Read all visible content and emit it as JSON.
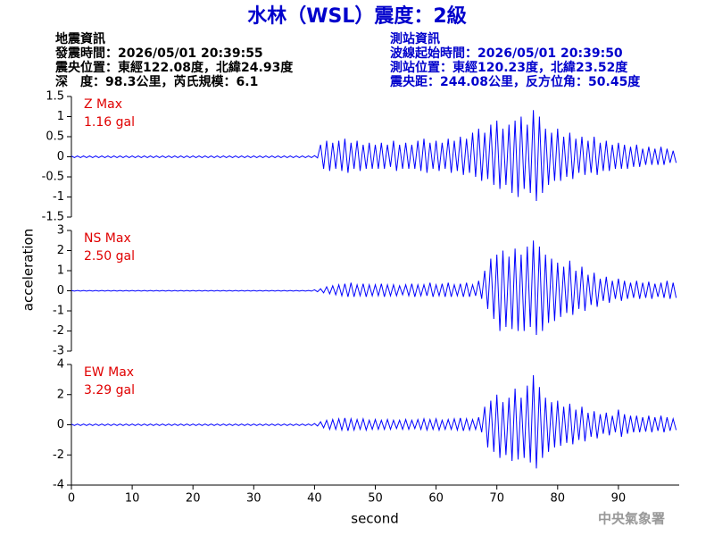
{
  "header": {
    "title": "水林（WSL）震度：2級",
    "left": [
      "地震資訊",
      "發震時間：2026/05/01 20:39:55",
      "震央位置：東經122.08度，北緯24.93度",
      "深　度：98.3公里，芮氏規模：6.1"
    ],
    "right": [
      "測站資訊",
      "波線起始時間：2026/05/01 20:39:50",
      "測站位置：東經120.23度，北緯23.52度",
      "震央距：244.08公里，反方位角：50.45度"
    ],
    "footer": "中央氣象署"
  },
  "chart_data": {
    "type": "line",
    "xlabel": "second",
    "ylabel": "acceleration",
    "xlim": [
      0,
      100
    ],
    "xticks": [
      0,
      10,
      20,
      30,
      40,
      50,
      60,
      70,
      80,
      90
    ],
    "x": [
      0,
      1,
      2,
      3,
      4,
      5,
      6,
      7,
      8,
      9,
      10,
      11,
      12,
      13,
      14,
      15,
      16,
      17,
      18,
      19,
      20,
      21,
      22,
      23,
      24,
      25,
      26,
      27,
      28,
      29,
      30,
      31,
      32,
      33,
      34,
      35,
      36,
      37,
      38,
      39,
      40,
      41,
      42,
      43,
      44,
      45,
      46,
      47,
      48,
      49,
      50,
      51,
      52,
      53,
      54,
      55,
      56,
      57,
      58,
      59,
      60,
      61,
      62,
      63,
      64,
      65,
      66,
      67,
      68,
      69,
      70,
      71,
      72,
      73,
      74,
      75,
      76,
      77,
      78,
      79,
      80,
      81,
      82,
      83,
      84,
      85,
      86,
      87,
      88,
      89,
      90,
      91,
      92,
      93,
      94,
      95,
      96,
      97,
      98,
      99
    ],
    "panels": [
      {
        "name": "Z Max",
        "annotation": "1.16 gal",
        "color": "#0000ff",
        "ylim": [
          -1.5,
          1.5
        ],
        "yticks": [
          1.5,
          1,
          0.5,
          0,
          -0.5,
          -1,
          -1.5
        ],
        "upper": [
          0.02,
          0.02,
          0.02,
          0.02,
          0.02,
          0.02,
          0.02,
          0.02,
          0.02,
          0.02,
          0.02,
          0.02,
          0.02,
          0.02,
          0.02,
          0.02,
          0.02,
          0.02,
          0.02,
          0.02,
          0.02,
          0.02,
          0.02,
          0.02,
          0.02,
          0.02,
          0.02,
          0.02,
          0.02,
          0.02,
          0.02,
          0.02,
          0.02,
          0.02,
          0.02,
          0.02,
          0.02,
          0.02,
          0.02,
          0.02,
          0.03,
          0.3,
          0.4,
          0.35,
          0.4,
          0.45,
          0.35,
          0.4,
          0.3,
          0.35,
          0.3,
          0.35,
          0.3,
          0.4,
          0.3,
          0.35,
          0.3,
          0.4,
          0.45,
          0.35,
          0.4,
          0.35,
          0.45,
          0.4,
          0.5,
          0.45,
          0.6,
          0.7,
          0.6,
          0.8,
          0.9,
          0.7,
          0.8,
          0.9,
          1.0,
          0.8,
          1.16,
          1.0,
          0.7,
          0.6,
          0.7,
          0.5,
          0.6,
          0.45,
          0.5,
          0.4,
          0.5,
          0.35,
          0.4,
          0.3,
          0.35,
          0.3,
          0.25,
          0.3,
          0.2,
          0.25,
          0.2,
          0.25,
          0.2,
          0.15
        ],
        "lower": [
          -0.02,
          -0.02,
          -0.02,
          -0.02,
          -0.02,
          -0.02,
          -0.02,
          -0.02,
          -0.02,
          -0.02,
          -0.02,
          -0.02,
          -0.02,
          -0.02,
          -0.02,
          -0.02,
          -0.02,
          -0.02,
          -0.02,
          -0.02,
          -0.02,
          -0.02,
          -0.02,
          -0.02,
          -0.02,
          -0.02,
          -0.02,
          -0.02,
          -0.02,
          -0.02,
          -0.02,
          -0.02,
          -0.02,
          -0.02,
          -0.02,
          -0.02,
          -0.02,
          -0.02,
          -0.02,
          -0.02,
          -0.03,
          -0.3,
          -0.35,
          -0.3,
          -0.35,
          -0.4,
          -0.3,
          -0.35,
          -0.3,
          -0.3,
          -0.3,
          -0.3,
          -0.25,
          -0.35,
          -0.3,
          -0.3,
          -0.3,
          -0.35,
          -0.4,
          -0.3,
          -0.35,
          -0.3,
          -0.4,
          -0.35,
          -0.45,
          -0.4,
          -0.5,
          -0.6,
          -0.55,
          -0.7,
          -0.8,
          -0.7,
          -0.9,
          -1.0,
          -0.8,
          -0.9,
          -1.1,
          -0.9,
          -0.7,
          -0.6,
          -0.6,
          -0.5,
          -0.55,
          -0.4,
          -0.45,
          -0.4,
          -0.45,
          -0.35,
          -0.35,
          -0.3,
          -0.3,
          -0.3,
          -0.25,
          -0.25,
          -0.2,
          -0.2,
          -0.2,
          -0.2,
          -0.15,
          -0.15
        ]
      },
      {
        "name": "NS Max",
        "annotation": "2.50 gal",
        "color": "#0000ff",
        "ylim": [
          -3,
          3
        ],
        "yticks": [
          3,
          2,
          1,
          0,
          -1,
          -2,
          -3
        ],
        "upper": [
          0.02,
          0.02,
          0.02,
          0.02,
          0.02,
          0.02,
          0.02,
          0.02,
          0.02,
          0.02,
          0.02,
          0.02,
          0.02,
          0.02,
          0.02,
          0.02,
          0.02,
          0.02,
          0.02,
          0.02,
          0.02,
          0.02,
          0.02,
          0.02,
          0.02,
          0.02,
          0.02,
          0.02,
          0.02,
          0.02,
          0.02,
          0.02,
          0.02,
          0.02,
          0.02,
          0.02,
          0.02,
          0.02,
          0.02,
          0.02,
          0.05,
          0.1,
          0.2,
          0.25,
          0.3,
          0.35,
          0.4,
          0.3,
          0.35,
          0.3,
          0.3,
          0.35,
          0.3,
          0.3,
          0.25,
          0.3,
          0.35,
          0.3,
          0.3,
          0.4,
          0.3,
          0.35,
          0.4,
          0.3,
          0.35,
          0.4,
          0.3,
          0.5,
          1.0,
          1.6,
          1.8,
          2.0,
          1.7,
          2.1,
          1.8,
          2.2,
          2.5,
          2.2,
          1.8,
          1.6,
          1.4,
          1.2,
          1.5,
          1.0,
          1.2,
          0.8,
          0.9,
          0.6,
          0.7,
          0.5,
          0.6,
          0.5,
          0.4,
          0.5,
          0.4,
          0.45,
          0.35,
          0.4,
          0.5,
          0.4
        ],
        "lower": [
          -0.02,
          -0.02,
          -0.02,
          -0.02,
          -0.02,
          -0.02,
          -0.02,
          -0.02,
          -0.02,
          -0.02,
          -0.02,
          -0.02,
          -0.02,
          -0.02,
          -0.02,
          -0.02,
          -0.02,
          -0.02,
          -0.02,
          -0.02,
          -0.02,
          -0.02,
          -0.02,
          -0.02,
          -0.02,
          -0.02,
          -0.02,
          -0.02,
          -0.02,
          -0.02,
          -0.02,
          -0.02,
          -0.02,
          -0.02,
          -0.02,
          -0.02,
          -0.02,
          -0.02,
          -0.02,
          -0.02,
          -0.05,
          -0.1,
          -0.15,
          -0.2,
          -0.25,
          -0.3,
          -0.3,
          -0.25,
          -0.3,
          -0.25,
          -0.25,
          -0.3,
          -0.25,
          -0.25,
          -0.2,
          -0.25,
          -0.3,
          -0.25,
          -0.25,
          -0.3,
          -0.25,
          -0.3,
          -0.3,
          -0.25,
          -0.3,
          -0.3,
          -0.25,
          -0.4,
          -0.9,
          -1.4,
          -2.0,
          -1.8,
          -1.9,
          -2.0,
          -2.0,
          -1.8,
          -2.2,
          -2.0,
          -1.6,
          -1.5,
          -1.3,
          -1.1,
          -1.2,
          -0.9,
          -1.0,
          -0.7,
          -0.8,
          -0.5,
          -0.6,
          -0.4,
          -0.5,
          -0.4,
          -0.35,
          -0.4,
          -0.35,
          -0.4,
          -0.3,
          -0.35,
          -0.4,
          -0.35
        ]
      },
      {
        "name": "EW Max",
        "annotation": "3.29 gal",
        "color": "#0000ff",
        "ylim": [
          -4,
          4
        ],
        "yticks": [
          4,
          2,
          0,
          -2,
          -4
        ],
        "upper": [
          0.05,
          0.05,
          0.05,
          0.05,
          0.05,
          0.05,
          0.05,
          0.05,
          0.05,
          0.05,
          0.05,
          0.05,
          0.05,
          0.05,
          0.05,
          0.05,
          0.05,
          0.05,
          0.05,
          0.05,
          0.05,
          0.05,
          0.05,
          0.05,
          0.05,
          0.05,
          0.05,
          0.05,
          0.05,
          0.05,
          0.05,
          0.05,
          0.05,
          0.05,
          0.05,
          0.05,
          0.05,
          0.05,
          0.05,
          0.05,
          0.08,
          0.2,
          0.3,
          0.35,
          0.4,
          0.45,
          0.4,
          0.35,
          0.4,
          0.3,
          0.35,
          0.3,
          0.35,
          0.3,
          0.3,
          0.35,
          0.3,
          0.35,
          0.4,
          0.35,
          0.4,
          0.3,
          0.35,
          0.4,
          0.45,
          0.4,
          0.35,
          0.5,
          1.2,
          1.6,
          2.0,
          1.5,
          1.8,
          2.4,
          1.8,
          2.6,
          3.29,
          2.5,
          1.8,
          1.5,
          1.6,
          1.2,
          1.4,
          1.0,
          1.2,
          0.8,
          0.9,
          0.7,
          0.8,
          0.6,
          1.0,
          0.7,
          0.6,
          0.6,
          0.5,
          0.6,
          0.5,
          0.6,
          0.5,
          0.4
        ],
        "lower": [
          -0.05,
          -0.05,
          -0.05,
          -0.05,
          -0.05,
          -0.05,
          -0.05,
          -0.05,
          -0.05,
          -0.05,
          -0.05,
          -0.05,
          -0.05,
          -0.05,
          -0.05,
          -0.05,
          -0.05,
          -0.05,
          -0.05,
          -0.05,
          -0.05,
          -0.05,
          -0.05,
          -0.05,
          -0.05,
          -0.05,
          -0.05,
          -0.05,
          -0.05,
          -0.05,
          -0.05,
          -0.05,
          -0.05,
          -0.05,
          -0.05,
          -0.05,
          -0.05,
          -0.05,
          -0.05,
          -0.05,
          -0.08,
          -0.2,
          -0.3,
          -0.3,
          -0.35,
          -0.4,
          -0.35,
          -0.3,
          -0.35,
          -0.3,
          -0.3,
          -0.3,
          -0.3,
          -0.25,
          -0.3,
          -0.3,
          -0.25,
          -0.3,
          -0.35,
          -0.3,
          -0.35,
          -0.3,
          -0.3,
          -0.35,
          -0.4,
          -0.35,
          -0.3,
          -0.5,
          -1.5,
          -1.8,
          -2.2,
          -2.0,
          -2.4,
          -2.3,
          -2.2,
          -2.5,
          -2.9,
          -2.2,
          -1.8,
          -1.5,
          -1.4,
          -1.2,
          -1.3,
          -1.0,
          -1.1,
          -0.8,
          -0.9,
          -0.6,
          -0.7,
          -0.5,
          -0.8,
          -0.6,
          -0.5,
          -0.5,
          -0.45,
          -0.5,
          -0.4,
          -0.5,
          -0.4,
          -0.35
        ]
      }
    ]
  }
}
